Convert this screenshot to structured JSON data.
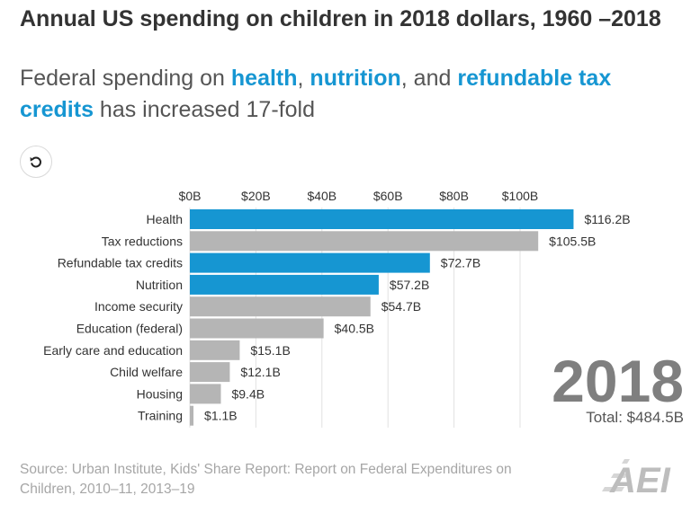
{
  "title": "Annual US spending on children in 2018 dollars, 1960 –2018",
  "subtitle": {
    "t1": "Federal spending on ",
    "h1": "health",
    "t2": ", ",
    "h2": "nutrition",
    "t3": ", and ",
    "h3": "refundable tax credits",
    "t4": " has increased 17-fold"
  },
  "replay_icon": "replay-icon",
  "year": "2018",
  "total": "Total: $484.5B",
  "source": "Source: Urban Institute, Kids' Share Report: Report on Federal Expenditures on Children, 2010–11, 2013–19",
  "logo": {
    "icon": "aei-logo",
    "text": "AEI"
  },
  "colors": {
    "highlight": "#1696d2",
    "other": "#b5b5b5",
    "year": "#7f7f7f",
    "source": "#a6a6a6"
  },
  "chart_data": {
    "type": "bar",
    "orientation": "horizontal",
    "x_ticks": [
      "$0B",
      "$20B",
      "$40B",
      "$60B",
      "$80B",
      "$100B"
    ],
    "x_tick_values": [
      0,
      20,
      40,
      60,
      80,
      100
    ],
    "xlim": [
      0,
      116.2
    ],
    "grid": true,
    "categories": [
      "Health",
      "Tax reductions",
      "Refundable tax credits",
      "Nutrition",
      "Income security",
      "Education (federal)",
      "Early care and education",
      "Child welfare",
      "Housing",
      "Training"
    ],
    "values": [
      116.2,
      105.5,
      72.7,
      57.2,
      54.7,
      40.5,
      15.1,
      12.1,
      9.4,
      1.1
    ],
    "value_labels": [
      "$116.2B",
      "$105.5B",
      "$72.7B",
      "$57.2B",
      "$54.7B",
      "$40.5B",
      "$15.1B",
      "$12.1B",
      "$9.4B",
      "$1.1B"
    ],
    "highlighted": [
      true,
      false,
      true,
      true,
      false,
      false,
      false,
      false,
      false,
      false
    ]
  }
}
